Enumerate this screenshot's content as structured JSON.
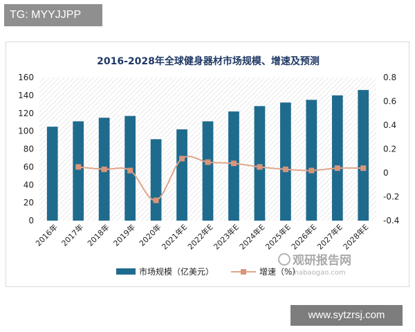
{
  "overlay": {
    "tag": "TG: MYYJJPP",
    "site": "www.sytzrsj.com"
  },
  "watermark": {
    "brand": "观研报告网",
    "url": "chinabaogao.com"
  },
  "colors": {
    "bar": "#1f6b8e",
    "line": "#e0a58a",
    "marker": "#d9957a",
    "hatch": "#e2e2e2"
  },
  "chart_data": {
    "type": "bar",
    "title": "2016-2028年全球健身器材市场规模、增速及预测",
    "categories": [
      "2016年",
      "2017年",
      "2018年",
      "2019年",
      "2020年",
      "2021年E",
      "2022年E",
      "2023年E",
      "2024年E",
      "2025年E",
      "2026年E",
      "2027年E",
      "2028年E"
    ],
    "series": [
      {
        "name": "市场规模（亿美元）",
        "type": "bar",
        "axis": "left",
        "values": [
          105,
          111,
          115,
          117,
          91,
          102,
          111,
          122,
          128,
          132,
          135,
          140,
          146
        ]
      },
      {
        "name": "增速（%）",
        "type": "line",
        "axis": "right",
        "values": [
          null,
          0.05,
          0.03,
          0.02,
          -0.23,
          0.12,
          0.09,
          0.08,
          0.05,
          0.03,
          0.02,
          0.04,
          0.04
        ]
      }
    ],
    "yleft": {
      "lim": [
        0,
        160
      ],
      "ticks": [
        "0",
        "20",
        "40",
        "60",
        "80",
        "100",
        "120",
        "140",
        "160"
      ]
    },
    "yright": {
      "lim": [
        -0.4,
        0.8
      ],
      "ticks": [
        "-0.4",
        "-0.2",
        "0",
        "0.2",
        "0.4",
        "0.6",
        "0.8"
      ]
    },
    "legend": "bottom",
    "grid": false
  }
}
